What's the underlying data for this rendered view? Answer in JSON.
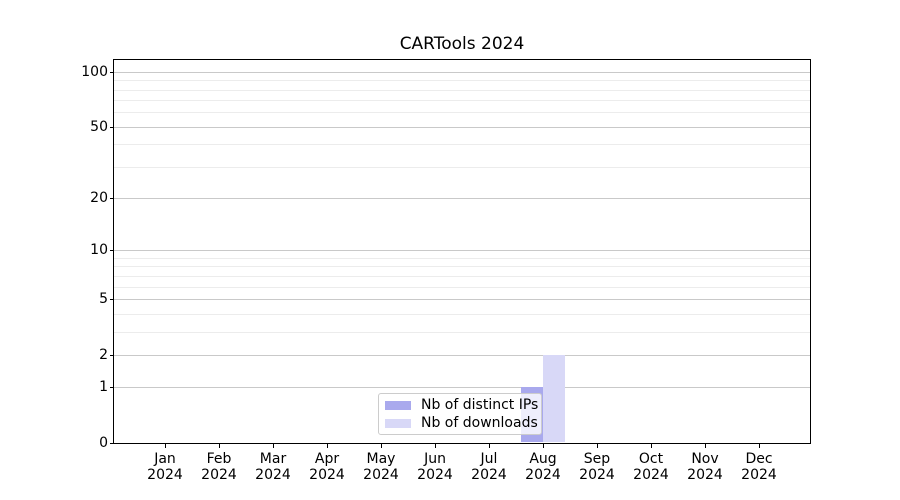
{
  "chart_data": {
    "type": "bar",
    "title": "CARTools 2024",
    "categories": [
      "Jan 2024",
      "Feb 2024",
      "Mar 2024",
      "Apr 2024",
      "May 2024",
      "Jun 2024",
      "Jul 2024",
      "Aug 2024",
      "Sep 2024",
      "Oct 2024",
      "Nov 2024",
      "Dec 2024"
    ],
    "series": [
      {
        "name": "Nb of distinct IPs",
        "color": "#a9a9ed",
        "values": [
          0,
          0,
          0,
          0,
          0,
          0,
          0,
          1,
          0,
          0,
          0,
          0
        ]
      },
      {
        "name": "Nb of downloads",
        "color": "#d8d8f7",
        "values": [
          0,
          0,
          0,
          0,
          0,
          0,
          0,
          2,
          0,
          0,
          0,
          0
        ]
      }
    ],
    "xlabel": "",
    "ylabel": "",
    "yscale": "log1p",
    "ylim": [
      0,
      115
    ],
    "yticks": [
      0,
      1,
      2,
      5,
      10,
      20,
      50,
      100
    ],
    "yticks_minor": [
      3,
      4,
      6,
      7,
      8,
      9,
      30,
      40,
      60,
      70,
      80,
      90
    ],
    "grid": "horizontal",
    "legend_position": "lower center inside"
  },
  "colors": {
    "axis": "#000000",
    "grid_major": "#c9c9c9",
    "grid_minor": "#ececec",
    "background": "#ffffff"
  }
}
